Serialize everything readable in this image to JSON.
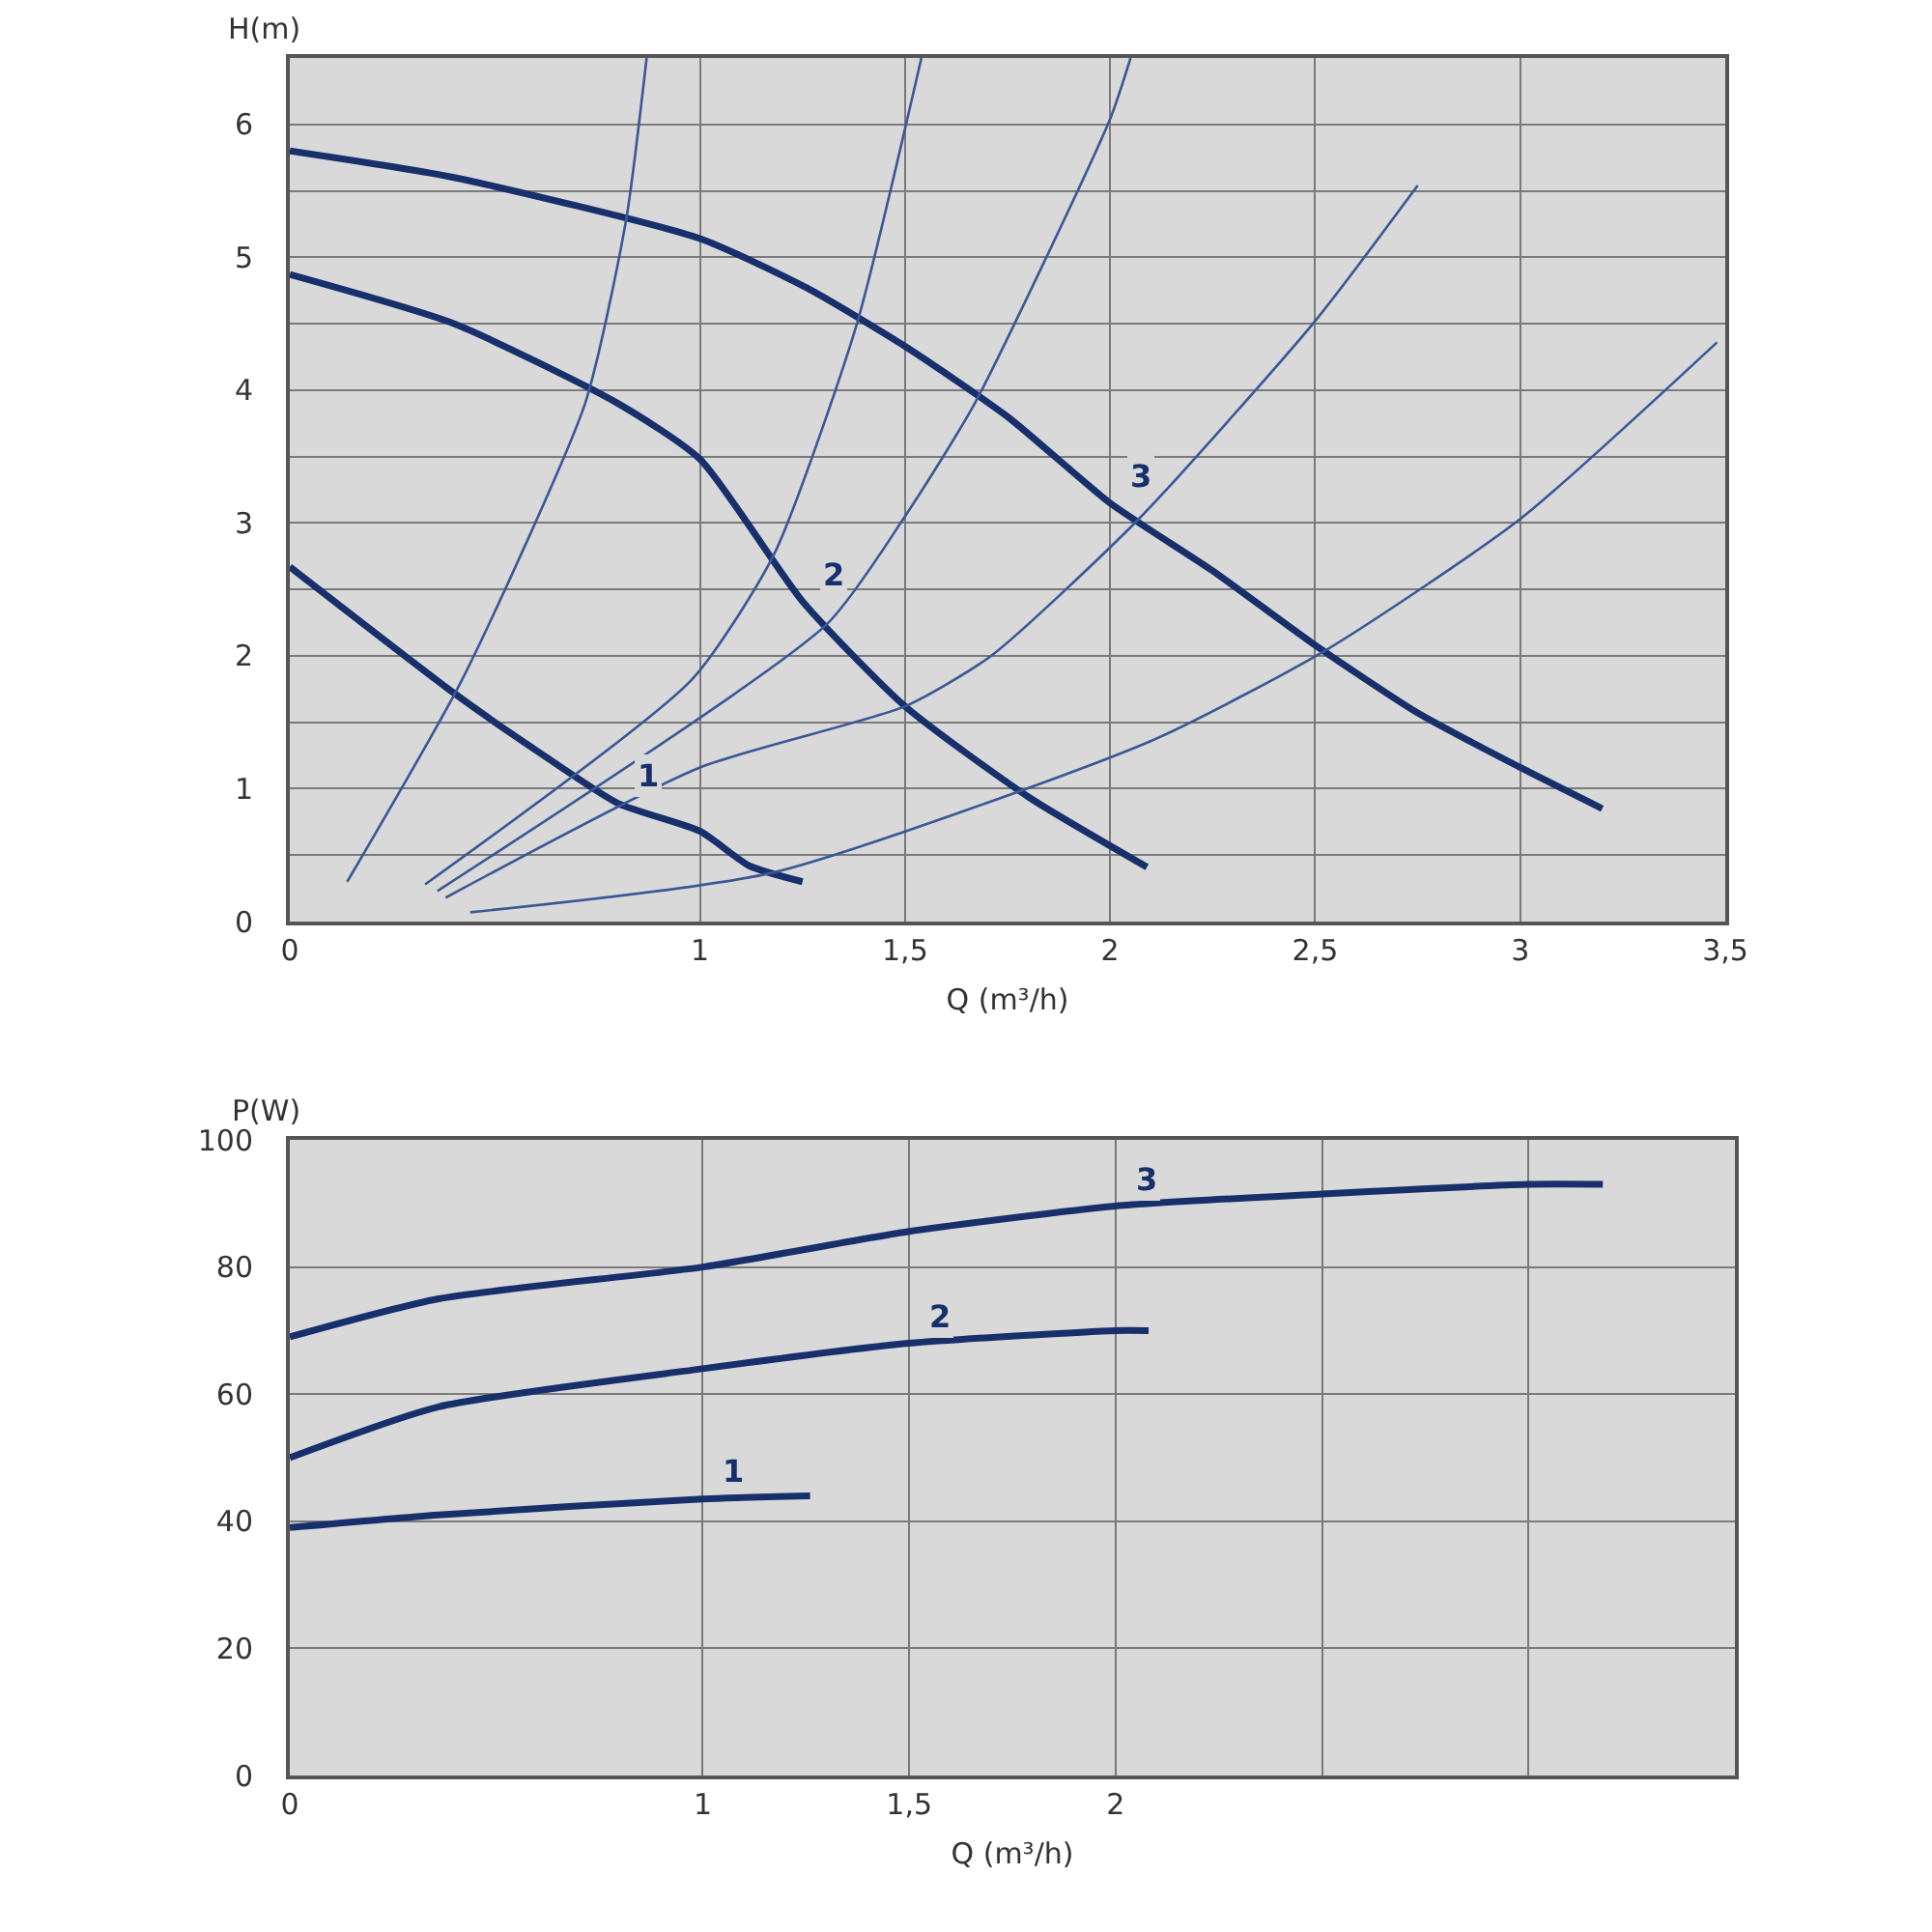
{
  "chart_data": [
    {
      "type": "line",
      "xlabel": "Q (m³/h)",
      "ylabel": "H(m)",
      "xlim": [
        0,
        3.5
      ],
      "ylim": [
        0,
        6.5
      ],
      "xticks": [
        0,
        1,
        {
          "value": 1.5,
          "label": "1,5"
        },
        2,
        {
          "value": 2.5,
          "label": "2,5"
        },
        3,
        {
          "value": 3.5,
          "label": "3,5"
        }
      ],
      "yticks": [
        0,
        {
          "value": 0.5,
          "label": null
        },
        1,
        {
          "value": 1.5,
          "label": null
        },
        2,
        {
          "value": 2.5,
          "label": null
        },
        3,
        {
          "value": 3.5,
          "label": null
        },
        4,
        {
          "value": 4.5,
          "label": null
        },
        5,
        {
          "value": 5.5,
          "label": null
        },
        6
      ],
      "grid": true,
      "legend": false,
      "marker": "none",
      "line_style": "solid",
      "series": [
        {
          "name": "3",
          "color": "#17306b",
          "x": [
            0,
            0.4,
            1,
            1.26,
            1.5,
            1.75,
            2,
            2.25,
            2.5,
            2.75,
            3,
            3.2
          ],
          "values": [
            5.8,
            5.6,
            5.14,
            4.77,
            4.33,
            3.8,
            3.15,
            2.64,
            2.08,
            1.57,
            1.16,
            0.85
          ]
        },
        {
          "name": "2",
          "color": "#17306b",
          "x": [
            0,
            0.4,
            0.8,
            1,
            1.25,
            1.5,
            1.8,
            2.09
          ],
          "values": [
            4.87,
            4.5,
            3.9,
            3.48,
            2.41,
            1.62,
            0.94,
            0.41
          ]
        },
        {
          "name": "1",
          "color": "#17306b",
          "x": [
            0,
            0.4,
            0.6,
            0.8,
            1,
            1.12,
            1.25
          ],
          "values": [
            2.67,
            1.72,
            1.29,
            0.89,
            0.68,
            0.42,
            0.3
          ]
        },
        {
          "color": "#3a5796",
          "x": [
            0.14,
            0.42,
            0.72,
            0.82,
            0.87
          ],
          "values": [
            0.3,
            1.82,
            3.9,
            5.28,
            6.5
          ]
        },
        {
          "color": "#3a5796",
          "x": [
            0.33,
            0.98,
            1.18,
            1.38,
            1.54
          ],
          "values": [
            0.28,
            1.82,
            2.76,
            4.47,
            6.5
          ]
        },
        {
          "color": "#3a5796",
          "x": [
            0.36,
            1.31,
            1.5,
            1.67,
            2.0,
            2.05
          ],
          "values": [
            0.23,
            2.24,
            3.05,
            3.9,
            6.04,
            6.5
          ]
        },
        {
          "color": "#3a5796",
          "x": [
            0.38,
            1.0,
            1.5,
            1.71,
            2.07,
            2.5,
            2.75
          ],
          "values": [
            0.18,
            1.16,
            1.62,
            2.0,
            3.03,
            4.52,
            5.54
          ]
        },
        {
          "color": "#3a5796",
          "x": [
            0.44,
            1.18,
            2.1,
            2.53,
            3.0,
            3.48
          ],
          "values": [
            0.07,
            0.37,
            1.36,
            2.05,
            3.03,
            4.36
          ]
        }
      ]
    },
    {
      "type": "line",
      "xlabel": "Q (m³/h)",
      "ylabel": "P(W)",
      "xlim": [
        0,
        3.5
      ],
      "ylim": [
        0,
        100
      ],
      "xticks": [
        0,
        1,
        {
          "value": 1.5,
          "label": "1,5"
        },
        2,
        {
          "value": 2.5,
          "label": null
        },
        {
          "value": 3,
          "label": null
        }
      ],
      "yticks": [
        0,
        20,
        40,
        60,
        80,
        100
      ],
      "grid": true,
      "legend": false,
      "marker": "none",
      "line_style": "solid",
      "series": [
        {
          "name": "3",
          "color": "#17306b",
          "x": [
            0,
            0.36,
            1,
            1.5,
            2,
            2.5,
            3,
            3.18
          ],
          "values": [
            69,
            75,
            80,
            85.6,
            89.6,
            91.5,
            93,
            93
          ]
        },
        {
          "name": "2",
          "color": "#17306b",
          "x": [
            0,
            0.36,
            1,
            1.5,
            2,
            2.08
          ],
          "values": [
            50,
            58,
            64,
            68,
            70,
            70
          ]
        },
        {
          "name": "1",
          "color": "#17306b",
          "x": [
            0,
            0.36,
            1,
            1.26
          ],
          "values": [
            39,
            41,
            43.5,
            44
          ]
        }
      ]
    }
  ]
}
